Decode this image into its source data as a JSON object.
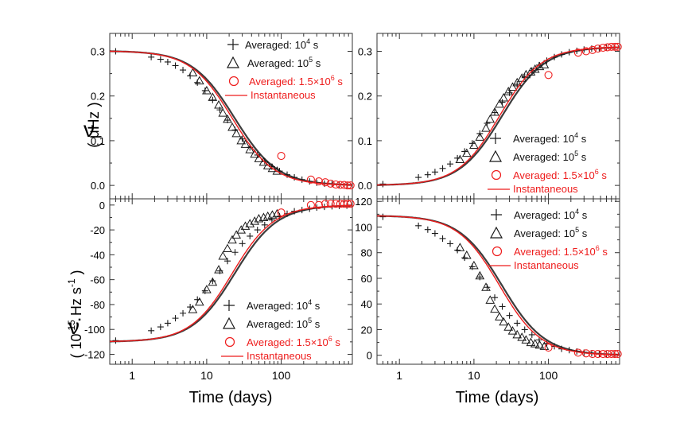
{
  "figure": {
    "xlabel": "Time (days)",
    "ylabel_top": "ν",
    "ylabel_top_unit": "( μHz )",
    "ylabel_bottom": "ν̇",
    "ylabel_bottom_unit_a": "( 10",
    "ylabel_bottom_unit_exp": "-15",
    "ylabel_bottom_unit_b": " Hz s",
    "ylabel_bottom_unit_exp2": "-1",
    "ylabel_bottom_unit_c": " )",
    "colors": {
      "red": "#ee1c1c",
      "black": "#1a1a1a",
      "frame": "#333333"
    }
  },
  "legend": {
    "entry1_prefix": "Averaged: 10",
    "entry1_exp": "4",
    "entry1_suffix": " s",
    "entry2_prefix": "Averaged: 10",
    "entry2_exp": "5",
    "entry2_suffix": " s",
    "entry3_prefix": "Averaged: 1.5×10",
    "entry3_exp": "6",
    "entry3_suffix": " s",
    "entry4": "Instantaneous"
  },
  "chart_data": [
    {
      "type": "line",
      "panel": "top-left",
      "x_scale": "log",
      "xlim": [
        0.5,
        900
      ],
      "ylim": [
        -0.03,
        0.34
      ],
      "yticks": [
        0.0,
        0.1,
        0.2,
        0.3
      ],
      "ytick_labels": [
        "0.0",
        "0.1",
        "0.2",
        "0.3"
      ],
      "model": {
        "start": 0.301,
        "end": 0.0,
        "t50": 22,
        "hill": 1.55
      },
      "series": [
        {
          "name": "Averaged: 10^4 s",
          "marker": "plus",
          "x": [
            0.6,
            1.8,
            2.4,
            3.0,
            3.8,
            4.8,
            6.0,
            7.5,
            9.5,
            12,
            15,
            19,
            24,
            30,
            38,
            48,
            60,
            75,
            95,
            120,
            150,
            190,
            240,
            300,
            380,
            480,
            600,
            760
          ],
          "y": [
            0.3,
            0.287,
            0.282,
            0.276,
            0.268,
            0.258,
            0.245,
            0.23,
            0.212,
            0.191,
            0.169,
            0.146,
            0.124,
            0.104,
            0.085,
            0.068,
            0.054,
            0.042,
            0.032,
            0.024,
            0.018,
            0.013,
            0.009,
            0.006,
            0.004,
            0.003,
            0.002,
            0.001
          ]
        },
        {
          "name": "Averaged: 10^5 s",
          "marker": "triangle",
          "x": [
            6.5,
            8,
            10,
            12,
            14.5,
            16.5,
            19,
            22,
            25,
            29,
            33,
            38,
            44,
            50,
            58,
            66,
            76,
            88
          ],
          "y": [
            0.252,
            0.234,
            0.212,
            0.197,
            0.18,
            0.162,
            0.148,
            0.13,
            0.116,
            0.1,
            0.092,
            0.08,
            0.07,
            0.06,
            0.052,
            0.044,
            0.038,
            0.032
          ]
        },
        {
          "name": "Averaged: 1.5×10^6 s",
          "marker": "circle",
          "x": [
            100,
            250,
            320,
            390,
            460,
            540,
            620,
            700,
            780,
            850
          ],
          "y": [
            0.066,
            0.013,
            0.009,
            0.007,
            0.004,
            0.002,
            0.001,
            0.001,
            0.0,
            0.0
          ]
        }
      ]
    },
    {
      "type": "line",
      "panel": "top-right",
      "x_scale": "log",
      "xlim": [
        0.5,
        900
      ],
      "ylim": [
        -0.03,
        0.34
      ],
      "yticks": [
        0.0,
        0.1,
        0.2,
        0.3
      ],
      "ytick_labels": [
        "0.0",
        "0.1",
        "0.2",
        "0.3"
      ],
      "model": {
        "start": 0.0,
        "end": 0.31,
        "t50": 22,
        "hill": 1.55
      },
      "series": [
        {
          "name": "Averaged: 10^4 s",
          "marker": "plus",
          "x": [
            0.6,
            1.8,
            2.4,
            3.0,
            3.8,
            4.8,
            6.0,
            7.5,
            9.5,
            12,
            15,
            19,
            24,
            30,
            38,
            48,
            60,
            75,
            95,
            120,
            150,
            190,
            240,
            300,
            380,
            480,
            600,
            760
          ],
          "y": [
            0.003,
            0.018,
            0.024,
            0.03,
            0.038,
            0.048,
            0.061,
            0.076,
            0.094,
            0.116,
            0.139,
            0.163,
            0.186,
            0.207,
            0.226,
            0.243,
            0.257,
            0.269,
            0.279,
            0.287,
            0.293,
            0.298,
            0.301,
            0.304,
            0.306,
            0.307,
            0.308,
            0.309
          ]
        },
        {
          "name": "Averaged: 10^5 s",
          "marker": "triangle",
          "x": [
            6.5,
            8,
            10,
            12,
            14.5,
            16.5,
            19,
            22,
            25,
            29,
            33,
            38,
            44,
            50,
            58,
            66,
            76,
            88
          ],
          "y": [
            0.058,
            0.072,
            0.09,
            0.108,
            0.128,
            0.148,
            0.164,
            0.182,
            0.196,
            0.21,
            0.22,
            0.23,
            0.24,
            0.248,
            0.254,
            0.26,
            0.266,
            0.27
          ]
        },
        {
          "name": "Averaged: 1.5×10^6 s",
          "marker": "circle",
          "x": [
            100,
            250,
            320,
            390,
            460,
            540,
            620,
            700,
            780,
            850
          ],
          "y": [
            0.247,
            0.297,
            0.3,
            0.303,
            0.306,
            0.308,
            0.309,
            0.31,
            0.31,
            0.31
          ]
        }
      ]
    },
    {
      "type": "line",
      "panel": "bottom-left",
      "x_scale": "log",
      "xlim": [
        0.5,
        900
      ],
      "ylim": [
        -128,
        5
      ],
      "yticks": [
        -120,
        -100,
        -80,
        -60,
        -40,
        -20,
        0
      ],
      "ytick_labels": [
        "-120",
        "-100",
        "-80",
        "-60",
        "-40",
        "-20",
        "0"
      ],
      "xticks": [
        1,
        10,
        100
      ],
      "xtick_labels": [
        "1",
        "10",
        "100"
      ],
      "model": {
        "start": -110,
        "end": 0,
        "t50": 22,
        "hill": 1.55
      },
      "series": [
        {
          "name": "Averaged: 10^4 s",
          "marker": "plus",
          "x": [
            0.6,
            1.8,
            2.4,
            3.0,
            3.8,
            4.8,
            6.0,
            7.5,
            9.5,
            12,
            15,
            19,
            24,
            30,
            38,
            48,
            60,
            75,
            95,
            120,
            150,
            190,
            240,
            300,
            380,
            480,
            600,
            760
          ],
          "y": [
            -109,
            -101,
            -98,
            -95,
            -91,
            -87,
            -82,
            -76,
            -69,
            -61,
            -53,
            -45,
            -38,
            -31,
            -25,
            -20,
            -16,
            -12,
            -9,
            -7,
            -5,
            -4,
            -3,
            -2,
            -1.5,
            -1,
            -0.7,
            -0.5
          ]
        },
        {
          "name": "Averaged: 10^5 s",
          "marker": "triangle",
          "x": [
            6.5,
            8,
            10,
            12,
            14.5,
            16.5,
            19,
            22,
            25,
            29,
            33,
            38,
            44,
            50,
            58,
            66,
            76,
            88
          ],
          "y": [
            -84,
            -78,
            -68,
            -62,
            -52,
            -41,
            -35,
            -28,
            -24,
            -20,
            -17,
            -15,
            -13,
            -11,
            -10,
            -9,
            -8,
            -7
          ]
        },
        {
          "name": "Averaged: 1.5×10^6 s",
          "marker": "circle",
          "x": [
            100,
            250,
            320,
            390,
            460,
            540,
            620,
            700,
            780,
            850
          ],
          "y": [
            -6,
            0,
            0,
            1,
            1,
            1,
            1,
            1,
            1,
            1
          ]
        }
      ]
    },
    {
      "type": "line",
      "panel": "bottom-right",
      "x_scale": "log",
      "xlim": [
        0.5,
        900
      ],
      "ylim": [
        -7,
        122
      ],
      "yticks": [
        0,
        20,
        40,
        60,
        80,
        100,
        120
      ],
      "ytick_labels": [
        "0",
        "20",
        "40",
        "60",
        "80",
        "100",
        "120"
      ],
      "xticks": [
        1,
        10,
        100
      ],
      "xtick_labels": [
        "1",
        "10",
        "100"
      ],
      "model": {
        "start": 109,
        "end": 0,
        "t50": 22,
        "hill": 1.55
      },
      "series": [
        {
          "name": "Averaged: 10^4 s",
          "marker": "plus",
          "x": [
            0.6,
            1.8,
            2.4,
            3.0,
            3.8,
            4.8,
            6.0,
            7.5,
            9.5,
            12,
            15,
            19,
            24,
            30,
            38,
            48,
            60,
            75,
            95,
            120,
            150,
            190,
            240,
            300,
            380,
            480,
            600,
            760
          ],
          "y": [
            108,
            101,
            98,
            95,
            91,
            87,
            82,
            76,
            69,
            61,
            53,
            45,
            38,
            31,
            25,
            20,
            16,
            12,
            9,
            7,
            5,
            4,
            3,
            2,
            1.5,
            1,
            0.7,
            0.5
          ]
        },
        {
          "name": "Averaged: 10^5 s",
          "marker": "triangle",
          "x": [
            6.5,
            8,
            10,
            12,
            14.5,
            16.5,
            19,
            22,
            25,
            29,
            33,
            38,
            44,
            50,
            58,
            66,
            76,
            88
          ],
          "y": [
            84,
            78,
            70,
            62,
            53,
            43,
            36,
            30,
            26,
            22,
            19,
            16,
            14,
            12,
            10,
            9,
            8,
            7
          ]
        },
        {
          "name": "Averaged: 1.5×10^6 s",
          "marker": "circle",
          "x": [
            100,
            250,
            320,
            390,
            460,
            540,
            620,
            700,
            780,
            850
          ],
          "y": [
            6,
            2,
            1.5,
            1,
            1,
            1,
            1,
            1,
            1,
            1
          ]
        }
      ]
    }
  ]
}
